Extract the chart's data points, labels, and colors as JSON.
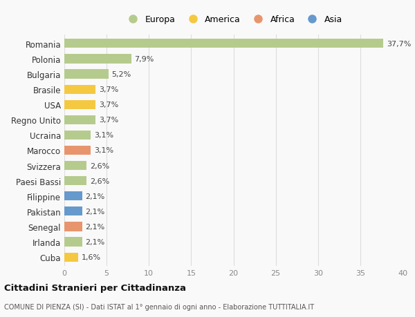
{
  "categories": [
    "Romania",
    "Polonia",
    "Bulgaria",
    "Brasile",
    "USA",
    "Regno Unito",
    "Ucraina",
    "Marocco",
    "Svizzera",
    "Paesi Bassi",
    "Filippine",
    "Pakistan",
    "Senegal",
    "Irlanda",
    "Cuba"
  ],
  "values": [
    37.7,
    7.9,
    5.2,
    3.7,
    3.7,
    3.7,
    3.1,
    3.1,
    2.6,
    2.6,
    2.1,
    2.1,
    2.1,
    2.1,
    1.6
  ],
  "labels": [
    "37,7%",
    "7,9%",
    "5,2%",
    "3,7%",
    "3,7%",
    "3,7%",
    "3,1%",
    "3,1%",
    "2,6%",
    "2,6%",
    "2,1%",
    "2,1%",
    "2,1%",
    "2,1%",
    "1,6%"
  ],
  "continent": [
    "Europa",
    "Europa",
    "Europa",
    "America",
    "America",
    "Europa",
    "Europa",
    "Africa",
    "Europa",
    "Europa",
    "Asia",
    "Asia",
    "Africa",
    "Europa",
    "America"
  ],
  "colors": {
    "Europa": "#b5cb8d",
    "America": "#f5c842",
    "Africa": "#e8956d",
    "Asia": "#6699cc"
  },
  "legend_order": [
    "Europa",
    "America",
    "Africa",
    "Asia"
  ],
  "title": "Cittadini Stranieri per Cittadinanza",
  "subtitle": "COMUNE DI PIENZA (SI) - Dati ISTAT al 1° gennaio di ogni anno - Elaborazione TUTTITALIA.IT",
  "xlim": [
    0,
    40
  ],
  "xticks": [
    0,
    5,
    10,
    15,
    20,
    25,
    30,
    35,
    40
  ],
  "bg_color": "#f9f9f9",
  "grid_color": "#dddddd",
  "bar_height": 0.6
}
